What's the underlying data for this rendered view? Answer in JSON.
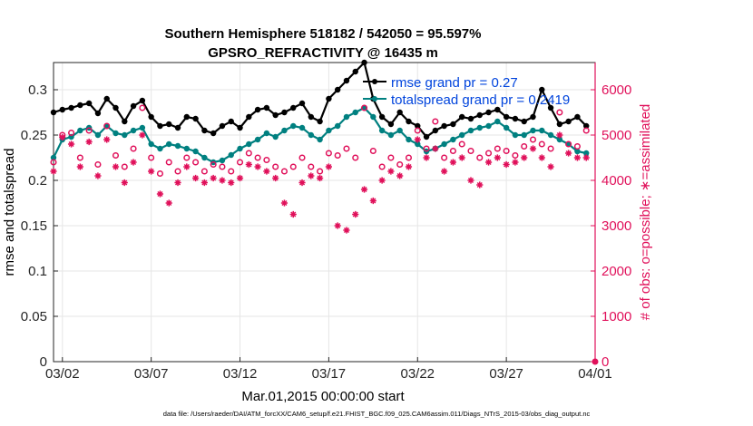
{
  "chart_data": {
    "type": "line",
    "title": "Southern Hemisphere 518182 / 542050 = 95.597%",
    "subtitle": "GPSRO_REFRACTIVITY @ 16435 m",
    "xlabel": "Mar.01,2015 00:00:00 start",
    "ylabel_left": "rmse and totalspread",
    "ylabel_right": "# of obs: o=possible; ∗=assimilated",
    "footnote": "data file: /Users/raeder/DAI/ATM_forcXX/CAM6_setup/f.e21.FHIST_BGC.f09_025.CAM6assim.011/Diags_NTrS_2015-03/obs_diag_output.nc",
    "x_ticks": [
      "03/02",
      "03/07",
      "03/12",
      "03/17",
      "03/22",
      "03/27",
      "04/01"
    ],
    "x_tick_days": [
      2,
      7,
      12,
      17,
      22,
      27,
      32
    ],
    "xlim": [
      1.5,
      32.0
    ],
    "ylim_left": [
      0,
      0.33
    ],
    "yticks_left": [
      "0",
      "0.05",
      "0.1",
      "0.15",
      "0.2",
      "0.25",
      "0.3"
    ],
    "yticks_left_values": [
      0,
      0.05,
      0.1,
      0.15,
      0.2,
      0.25,
      0.3
    ],
    "ylim_right": [
      0,
      6600
    ],
    "yticks_right": [
      "0",
      "1000",
      "2000",
      "3000",
      "4000",
      "5000",
      "6000"
    ],
    "yticks_right_values": [
      0,
      1000,
      2000,
      3000,
      4000,
      5000,
      6000
    ],
    "grid": true,
    "legend_position": "top-right",
    "legend": [
      {
        "label": "rmse grand pr = 0.27",
        "color": "#000000"
      },
      {
        "label": "totalspread grand pr = 0.2419",
        "color": "#008080"
      }
    ],
    "series": [
      {
        "name": "rmse",
        "color": "#000000",
        "axis": "left",
        "x": [
          1.5,
          2,
          2.5,
          3,
          3.5,
          4,
          4.5,
          5,
          5.5,
          6,
          6.5,
          7,
          7.5,
          8,
          8.5,
          9,
          9.5,
          10,
          10.5,
          11,
          11.5,
          12,
          12.5,
          13,
          13.5,
          14,
          14.5,
          15,
          15.5,
          16,
          16.5,
          17,
          17.5,
          18,
          18.5,
          19,
          19.5,
          20,
          20.5,
          21,
          21.5,
          22,
          22.5,
          23,
          23.5,
          24,
          24.5,
          25,
          25.5,
          26,
          26.5,
          27,
          27.5,
          28,
          28.5,
          29,
          29.5,
          30,
          30.5,
          31,
          31.5
        ],
        "values": [
          0.275,
          0.278,
          0.28,
          0.283,
          0.285,
          0.274,
          0.29,
          0.28,
          0.265,
          0.282,
          0.288,
          0.27,
          0.26,
          0.262,
          0.258,
          0.27,
          0.268,
          0.255,
          0.252,
          0.26,
          0.265,
          0.258,
          0.27,
          0.278,
          0.28,
          0.272,
          0.275,
          0.28,
          0.285,
          0.27,
          0.265,
          0.29,
          0.3,
          0.31,
          0.32,
          0.33,
          0.29,
          0.27,
          0.262,
          0.275,
          0.265,
          0.26,
          0.248,
          0.255,
          0.26,
          0.262,
          0.27,
          0.268,
          0.272,
          0.275,
          0.278,
          0.27,
          0.268,
          0.265,
          0.27,
          0.3,
          0.28,
          0.262,
          0.265,
          0.27,
          0.26
        ]
      },
      {
        "name": "totalspread",
        "color": "#008080",
        "axis": "left",
        "x": [
          1.5,
          2,
          2.5,
          3,
          3.5,
          4,
          4.5,
          5,
          5.5,
          6,
          6.5,
          7,
          7.5,
          8,
          8.5,
          9,
          9.5,
          10,
          10.5,
          11,
          11.5,
          12,
          12.5,
          13,
          13.5,
          14,
          14.5,
          15,
          15.5,
          16,
          16.5,
          17,
          17.5,
          18,
          18.5,
          19,
          19.5,
          20,
          20.5,
          21,
          21.5,
          22,
          22.5,
          23,
          23.5,
          24,
          24.5,
          25,
          25.5,
          26,
          26.5,
          27,
          27.5,
          28,
          28.5,
          29,
          29.5,
          30,
          30.5,
          31,
          31.5
        ],
        "values": [
          0.225,
          0.245,
          0.248,
          0.255,
          0.258,
          0.25,
          0.26,
          0.252,
          0.25,
          0.255,
          0.258,
          0.24,
          0.235,
          0.24,
          0.238,
          0.235,
          0.232,
          0.225,
          0.22,
          0.222,
          0.228,
          0.235,
          0.24,
          0.245,
          0.252,
          0.248,
          0.255,
          0.26,
          0.258,
          0.25,
          0.245,
          0.255,
          0.26,
          0.27,
          0.275,
          0.28,
          0.27,
          0.255,
          0.25,
          0.255,
          0.245,
          0.24,
          0.232,
          0.235,
          0.24,
          0.245,
          0.25,
          0.255,
          0.258,
          0.26,
          0.265,
          0.258,
          0.25,
          0.25,
          0.255,
          0.255,
          0.25,
          0.245,
          0.24,
          0.232,
          0.23
        ]
      },
      {
        "name": "obs possible",
        "color": "#e0105a",
        "axis": "right",
        "marker": "o",
        "x": [
          1.5,
          2,
          2.5,
          3,
          3.5,
          4,
          4.5,
          5,
          5.5,
          6,
          6.5,
          7,
          7.5,
          8,
          8.5,
          9,
          9.5,
          10,
          10.5,
          11,
          11.5,
          12,
          12.5,
          13,
          13.5,
          14,
          14.5,
          15,
          15.5,
          16,
          16.5,
          17,
          17.5,
          18,
          18.5,
          19,
          19.5,
          20,
          20.5,
          21,
          21.5,
          22,
          22.5,
          23,
          23.5,
          24,
          24.5,
          25,
          25.5,
          26,
          26.5,
          27,
          27.5,
          28,
          28.5,
          29,
          29.5,
          30,
          30.5,
          31,
          31.5
        ],
        "values": [
          4400,
          5000,
          5050,
          4500,
          5100,
          4350,
          5200,
          4550,
          4300,
          4700,
          5600,
          4500,
          4150,
          4400,
          4200,
          4500,
          4400,
          4200,
          4350,
          4300,
          4200,
          4400,
          4600,
          4500,
          4450,
          4300,
          4200,
          4300,
          4500,
          4300,
          4200,
          4600,
          4550,
          4700,
          4500,
          5600,
          4650,
          4300,
          4500,
          4350,
          4500,
          5100,
          4700,
          5300,
          4500,
          4650,
          4800,
          4650,
          4500,
          4600,
          4700,
          4650,
          4550,
          4750,
          4900,
          4800,
          4700,
          5500,
          4800,
          4750,
          5100
        ]
      },
      {
        "name": "obs assimilated",
        "color": "#e0105a",
        "axis": "right",
        "marker": "*",
        "x": [
          1.5,
          2,
          2.5,
          3,
          3.5,
          4,
          4.5,
          5,
          5.5,
          6,
          6.5,
          7,
          7.5,
          8,
          8.5,
          9,
          9.5,
          10,
          10.5,
          11,
          11.5,
          12,
          12.5,
          13,
          13.5,
          14,
          14.5,
          15,
          15.5,
          16,
          16.5,
          17,
          17.5,
          18,
          18.5,
          19,
          19.5,
          20,
          20.5,
          21,
          21.5,
          22,
          22.5,
          23,
          23.5,
          24,
          24.5,
          25,
          25.5,
          26,
          26.5,
          27,
          27.5,
          28,
          28.5,
          29,
          29.5,
          30,
          30.5,
          31,
          31.5
        ],
        "values": [
          4200,
          4950,
          4800,
          4300,
          4850,
          4100,
          4900,
          4300,
          3950,
          4400,
          5000,
          4200,
          3700,
          3500,
          3950,
          4300,
          4050,
          3950,
          4050,
          4000,
          3950,
          4050,
          4350,
          4300,
          4200,
          4050,
          3500,
          3250,
          3950,
          4100,
          4050,
          4300,
          3000,
          2900,
          3250,
          3800,
          3550,
          4000,
          4200,
          4100,
          4300,
          4900,
          4500,
          4700,
          4200,
          4400,
          4500,
          4000,
          3900,
          4400,
          4500,
          4350,
          4400,
          4500,
          4700,
          4500,
          4300,
          5000,
          4600,
          4500,
          4500
        ]
      }
    ]
  }
}
